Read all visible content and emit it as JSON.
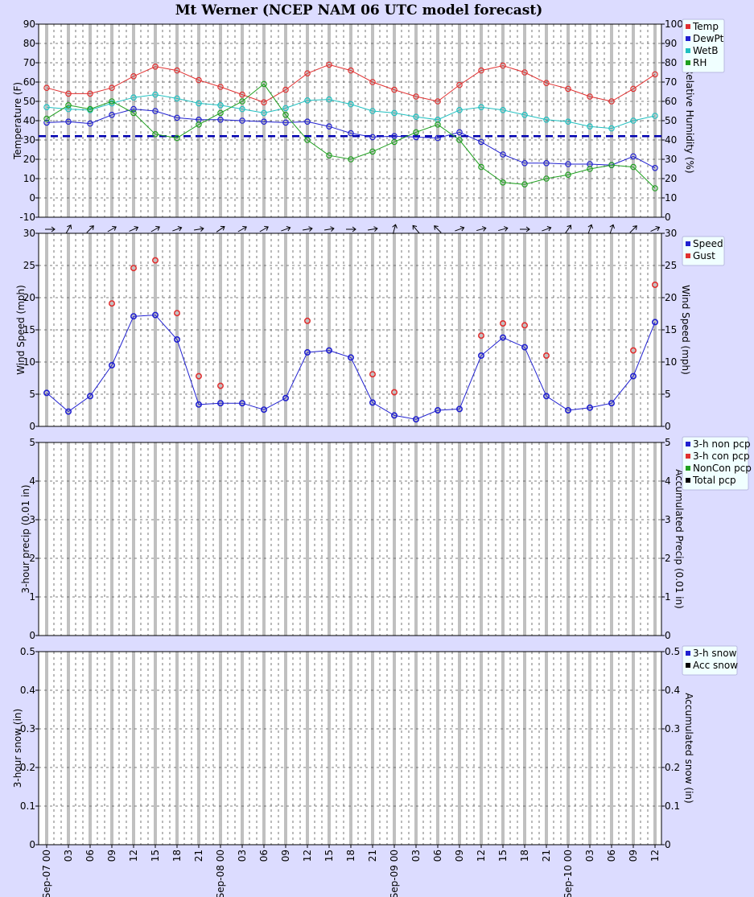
{
  "title": "Mt Werner (NCEP NAM 06 UTC model forecast)",
  "colors": {
    "background": "#dcdcff",
    "plot_bg": "#ffffff",
    "legend_bg": "#f0ffff",
    "temp": "#e03030",
    "dewpt": "#2020d0",
    "wetb": "#20c0c0",
    "rh": "#20a020",
    "speed": "#2020d0",
    "gust": "#e03030",
    "freezing_line": "#0000b0",
    "day_grid": "#c0c0c0"
  },
  "x_ticks": [
    "Sep-07 00",
    "03",
    "06",
    "09",
    "12",
    "15",
    "18",
    "21",
    "Sep-08 00",
    "03",
    "06",
    "09",
    "12",
    "15",
    "18",
    "21",
    "Sep-09 00",
    "03",
    "06",
    "09",
    "12",
    "15",
    "18",
    "21",
    "Sep-10 00",
    "03",
    "06",
    "09",
    "12"
  ],
  "chart_data": [
    {
      "type": "line",
      "name": "temperature_rh",
      "ylabel": "Temperature (F)",
      "y2label": "Relative Humidity (%)",
      "ylim": [
        -10,
        90
      ],
      "y2lim": [
        0,
        100
      ],
      "yticks": [
        -10,
        0,
        10,
        20,
        30,
        40,
        50,
        60,
        70,
        80,
        90
      ],
      "y2ticks": [
        0,
        10,
        20,
        30,
        40,
        50,
        60,
        70,
        80,
        90,
        100
      ],
      "freezing_line": 32,
      "series": [
        {
          "name": "Temp",
          "axis": "left",
          "values": [
            57,
            54,
            54,
            57,
            63,
            68,
            66,
            61,
            57.5,
            53.5,
            49.5,
            56,
            64.5,
            69,
            66,
            60,
            56,
            52.5,
            50,
            58.5,
            66,
            68.5,
            65,
            59.5,
            56.5,
            52.5,
            50,
            56.5,
            64
          ]
        },
        {
          "name": "DewPt",
          "axis": "left",
          "values": [
            39,
            39.5,
            38.5,
            43,
            46,
            45,
            41.5,
            40.5,
            40.5,
            40,
            39.5,
            39,
            39.5,
            37,
            33.5,
            31.5,
            32,
            31.5,
            31,
            34,
            29,
            22.5,
            18,
            18,
            17.5,
            17.5,
            17,
            21.5,
            15.5
          ]
        },
        {
          "name": "WetB",
          "axis": "left",
          "values": [
            47,
            46,
            45.5,
            49,
            52,
            53.5,
            51.5,
            49,
            48,
            46,
            44,
            46.5,
            50.5,
            51,
            48.5,
            45,
            44,
            42,
            40.5,
            45.5,
            47,
            45.5,
            43,
            40.5,
            39.5,
            37,
            36,
            40,
            42.5
          ]
        },
        {
          "name": "RH",
          "axis": "right",
          "values": [
            51,
            58,
            56,
            60,
            54,
            43,
            41,
            48,
            54,
            60,
            69,
            53,
            40,
            32,
            30,
            34,
            39,
            44,
            48,
            40,
            26,
            18,
            17,
            20,
            22,
            25,
            27,
            26,
            15
          ]
        }
      ]
    },
    {
      "type": "scatter",
      "name": "wind",
      "ylabel": "Wind Speed (mph)",
      "y2label": "Wind Speed (mph)",
      "ylim": [
        0,
        30
      ],
      "yticks": [
        0,
        5,
        10,
        15,
        20,
        25,
        30
      ],
      "series": [
        {
          "name": "Speed",
          "connected": true,
          "values": [
            5.2,
            2.3,
            4.7,
            9.5,
            17.1,
            17.3,
            13.5,
            3.4,
            3.6,
            3.6,
            2.6,
            4.4,
            11.5,
            11.8,
            10.7,
            3.7,
            1.7,
            1.1,
            2.5,
            2.7,
            11,
            13.8,
            12.3,
            4.7,
            2.5,
            2.9,
            3.6,
            7.8,
            16.2
          ]
        },
        {
          "name": "Gust",
          "connected": false,
          "values": [
            null,
            null,
            null,
            19.1,
            24.6,
            25.8,
            17.6,
            7.8,
            6.3,
            null,
            null,
            null,
            16.4,
            null,
            null,
            8.1,
            5.3,
            null,
            null,
            null,
            14.1,
            16,
            15.7,
            11,
            null,
            null,
            null,
            11.8,
            22
          ]
        }
      ],
      "wind_direction_deg": [
        270,
        210,
        225,
        240,
        245,
        240,
        250,
        260,
        235,
        240,
        240,
        250,
        260,
        260,
        270,
        260,
        195,
        140,
        135,
        250,
        255,
        255,
        270,
        250,
        215,
        200,
        200,
        225,
        245
      ]
    },
    {
      "type": "bar",
      "name": "precip",
      "ylabel": "3-hour precip (0.01 in)",
      "y2label": "Accumulated Precip (0.01 in)",
      "ylim": [
        0,
        5
      ],
      "yticks": [
        0,
        1,
        2,
        3,
        4,
        5
      ],
      "series": [
        {
          "name": "3-h non pcp",
          "values": []
        },
        {
          "name": "3-h con pcp",
          "values": []
        },
        {
          "name": "NonCon pcp",
          "values": []
        },
        {
          "name": "Total pcp",
          "values": []
        }
      ]
    },
    {
      "type": "bar",
      "name": "snow",
      "ylabel": "3-hour snow (in)",
      "y2label": "Accumulated snow (in)",
      "ylim": [
        0,
        0.5
      ],
      "yticks": [
        "0",
        "0.1",
        "0.2",
        "0.3",
        "0.4",
        "0.5"
      ],
      "series": [
        {
          "name": "3-h snow",
          "values": []
        },
        {
          "name": "Acc snow",
          "values": []
        }
      ]
    }
  ],
  "legends": [
    {
      "entries": [
        {
          "label": "Temp",
          "color": "#e03030"
        },
        {
          "label": "DewPt",
          "color": "#2020d0"
        },
        {
          "label": "WetB",
          "color": "#20c0c0"
        },
        {
          "label": "RH",
          "color": "#20a020"
        }
      ]
    },
    {
      "entries": [
        {
          "label": "Speed",
          "color": "#2020d0"
        },
        {
          "label": "Gust",
          "color": "#e03030"
        }
      ]
    },
    {
      "entries": [
        {
          "label": "3-h non pcp",
          "color": "#2020d0"
        },
        {
          "label": "3-h con pcp",
          "color": "#e03030"
        },
        {
          "label": "NonCon pcp",
          "color": "#20a020"
        },
        {
          "label": "Total pcp",
          "color": "#000000"
        }
      ]
    },
    {
      "entries": [
        {
          "label": "3-h snow",
          "color": "#2020d0"
        },
        {
          "label": "Acc snow",
          "color": "#000000"
        }
      ]
    }
  ]
}
